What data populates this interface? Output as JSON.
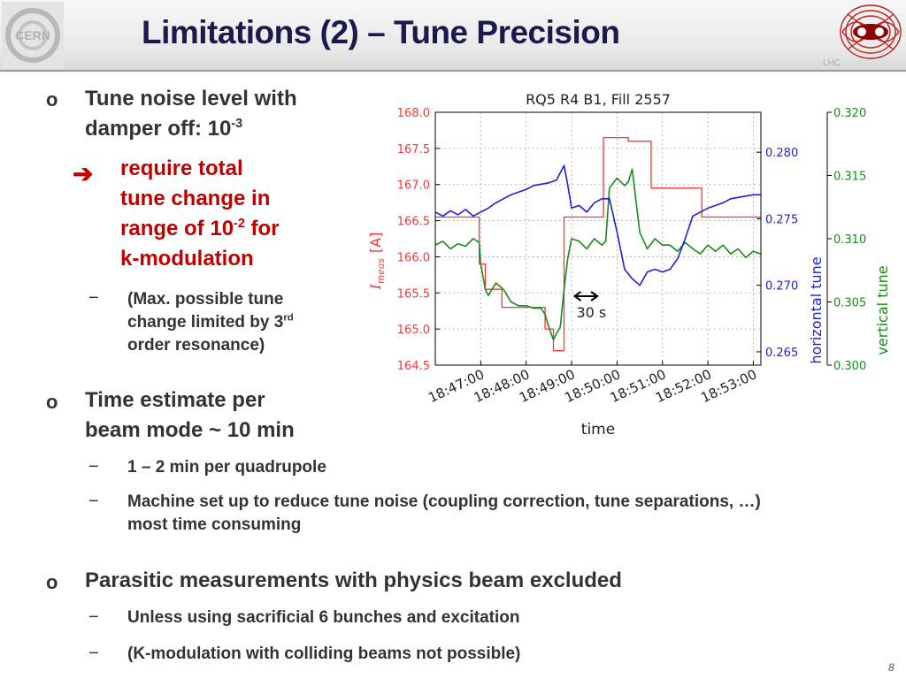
{
  "slide": {
    "title": "Limitations (2) – Tune Precision",
    "page_number": "8",
    "lhc_logo_text": "LHC",
    "cern_logo_text": "CERN"
  },
  "bullets": {
    "b1_line1": "Tune noise level with",
    "b1_line2_pre": "damper off: 10",
    "b1_line2_sup": "-3",
    "sub_red_1": "require total",
    "sub_red_2": "tune change in",
    "sub_red_3_pre": "range of 10",
    "sub_red_3_sup": "-2",
    "sub_red_3_post": " for",
    "sub_red_4": "k-modulation",
    "note_1": "(Max. possible tune",
    "note_2_pre": "change limited by 3",
    "note_2_sup": "rd",
    "note_3": "order resonance)",
    "b2_line1": "Time estimate per",
    "b2_line2": "beam mode ~ 10 min",
    "b2_sub1": "1 – 2 min per quadrupole",
    "b2_sub2_line1": "Machine set up to reduce tune noise (coupling correction, tune separations, …)",
    "b2_sub2_line2": "most time consuming",
    "b3_line1": "Parasitic measurements with physics beam excluded",
    "b3_sub1": "Unless using sacrificial 6 bunches and excitation",
    "b3_sub2": "(K-modulation with colliding beams not possible)"
  },
  "markers": {
    "bullet": "o",
    "dash": "−",
    "arrow": "➔"
  },
  "colors": {
    "title": "#1a1a4e",
    "red": "#c00000",
    "current": "#ff3333",
    "htune": "#1f1fd6",
    "vtune": "#1a8a1a"
  },
  "chart_data": {
    "type": "line",
    "title": "RQ5 R4 B1, Fill 2557",
    "xlabel": "time",
    "ylabel_left": "I_meas [A]",
    "ylabel_left_main": "I",
    "ylabel_left_sub": "meas",
    "ylabel_left_unit": "[A]",
    "ylabel_right1": "horizontal tune",
    "ylabel_right2": "vertical tune",
    "annotation": "30 s",
    "x_ticks": [
      "18:47:00",
      "18:48:00",
      "18:49:00",
      "18:50:00",
      "18:51:00",
      "18:52:00",
      "18:53:00"
    ],
    "x_tick_seconds": [
      60,
      120,
      180,
      240,
      300,
      360,
      420
    ],
    "xlim_seconds": [
      0,
      430
    ],
    "left_ticks": [
      "168.0",
      "167.5",
      "167.0",
      "166.5",
      "166.0",
      "165.5",
      "165.0",
      "164.5"
    ],
    "left_tick_values": [
      168.0,
      167.5,
      167.0,
      166.5,
      166.0,
      165.5,
      165.0,
      164.5
    ],
    "ylim_left": [
      164.5,
      168.0
    ],
    "right1_ticks": [
      "0.280",
      "0.275",
      "0.270",
      "0.265"
    ],
    "right1_tick_values": [
      0.28,
      0.275,
      0.27,
      0.265
    ],
    "ylim_right1": [
      0.264,
      0.283
    ],
    "right2_ticks": [
      "0.320",
      "0.315",
      "0.310",
      "0.305",
      "0.300"
    ],
    "right2_tick_values": [
      0.32,
      0.315,
      0.31,
      0.305,
      0.3
    ],
    "ylim_right2": [
      0.3,
      0.32
    ],
    "grid": true,
    "series": [
      {
        "name": "I_meas [A]",
        "axis": "left",
        "color": "#ff3333",
        "x": [
          0,
          58,
          58,
          66,
          66,
          88,
          88,
          145,
          145,
          156,
          156,
          170,
          170,
          222,
          222,
          255,
          255,
          285,
          285,
          352,
          352,
          430
        ],
        "y": [
          166.55,
          166.55,
          165.9,
          165.9,
          165.55,
          165.55,
          165.3,
          165.3,
          165.0,
          165.0,
          164.7,
          164.7,
          166.55,
          166.55,
          167.65,
          167.65,
          167.6,
          167.6,
          166.95,
          166.95,
          166.55,
          166.55
        ]
      },
      {
        "name": "horizontal tune",
        "axis": "right1",
        "color": "#1f1fd6",
        "x": [
          0,
          10,
          20,
          30,
          40,
          50,
          60,
          70,
          80,
          90,
          100,
          110,
          120,
          130,
          140,
          150,
          160,
          170,
          175,
          180,
          190,
          200,
          210,
          220,
          230,
          240,
          250,
          260,
          270,
          280,
          290,
          300,
          310,
          320,
          330,
          340,
          350,
          360,
          370,
          380,
          390,
          400,
          410,
          420,
          430
        ],
        "y": [
          0.2755,
          0.2752,
          0.2756,
          0.2753,
          0.2757,
          0.2752,
          0.2755,
          0.2758,
          0.2762,
          0.2765,
          0.2768,
          0.277,
          0.2772,
          0.2775,
          0.2776,
          0.2777,
          0.2779,
          0.279,
          0.2775,
          0.2758,
          0.276,
          0.2755,
          0.2762,
          0.2765,
          0.2765,
          0.274,
          0.2712,
          0.2705,
          0.27,
          0.271,
          0.2712,
          0.271,
          0.2712,
          0.272,
          0.2735,
          0.2752,
          0.2755,
          0.2758,
          0.276,
          0.2762,
          0.2765,
          0.2766,
          0.2767,
          0.2768,
          0.2768
        ]
      },
      {
        "name": "vertical tune",
        "axis": "right2",
        "color": "#1a8a1a",
        "x": [
          0,
          10,
          20,
          30,
          40,
          50,
          58,
          60,
          66,
          70,
          80,
          90,
          100,
          110,
          120,
          130,
          140,
          145,
          150,
          156,
          160,
          165,
          170,
          175,
          180,
          190,
          200,
          210,
          220,
          225,
          230,
          240,
          250,
          255,
          260,
          265,
          270,
          280,
          290,
          300,
          310,
          320,
          330,
          340,
          350,
          360,
          370,
          380,
          390,
          400,
          410,
          420,
          430
        ],
        "y": [
          0.3095,
          0.3098,
          0.3092,
          0.3096,
          0.3094,
          0.31,
          0.3097,
          0.308,
          0.306,
          0.3055,
          0.3065,
          0.306,
          0.305,
          0.3047,
          0.3047,
          0.3045,
          0.3045,
          0.304,
          0.303,
          0.302,
          0.3025,
          0.303,
          0.306,
          0.3085,
          0.31,
          0.3098,
          0.3092,
          0.31,
          0.3095,
          0.3098,
          0.314,
          0.3148,
          0.3142,
          0.3145,
          0.3155,
          0.313,
          0.3105,
          0.3092,
          0.31,
          0.3095,
          0.3095,
          0.309,
          0.3097,
          0.3092,
          0.3088,
          0.3095,
          0.309,
          0.3095,
          0.3088,
          0.3092,
          0.3085,
          0.309,
          0.3088
        ]
      }
    ]
  }
}
